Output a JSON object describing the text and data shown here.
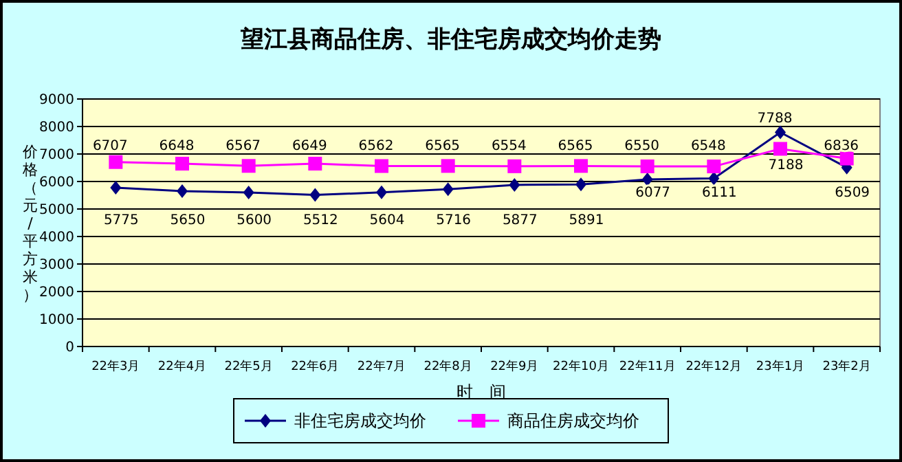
{
  "chart_data": {
    "type": "line",
    "title": "望江县商品住房、非住宅房成交均价走势",
    "xlabel": "时　间",
    "ylabel": "价格（元/平方米）",
    "categories": [
      "22年3月",
      "22年4月",
      "22年5月",
      "22年6月",
      "22年7月",
      "22年8月",
      "22年9月",
      "22年10月",
      "22年11月",
      "22年12月",
      "23年1月",
      "23年2月"
    ],
    "series": [
      {
        "name": "非住宅房成交均价",
        "color": "#000080",
        "marker": "diamond",
        "values": [
          5775,
          5650,
          5600,
          5512,
          5604,
          5716,
          5877,
          5891,
          6077,
          6111,
          7788,
          6509
        ]
      },
      {
        "name": "商品住房成交均价",
        "color": "#ff00ff",
        "marker": "square",
        "values": [
          6707,
          6648,
          6567,
          6649,
          6562,
          6565,
          6554,
          6565,
          6550,
          6548,
          7188,
          6836
        ]
      }
    ],
    "ylim": [
      0,
      9000
    ],
    "yticks": [
      0,
      1000,
      2000,
      3000,
      4000,
      5000,
      6000,
      7000,
      8000,
      9000
    ],
    "grid": "y",
    "legend": "bottom",
    "data_labels": true,
    "line_style": "solid"
  }
}
